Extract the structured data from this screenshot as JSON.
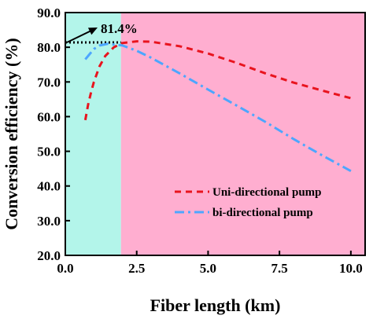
{
  "chart_data": {
    "type": "line",
    "xlabel": "Fiber length (km)",
    "ylabel": "Conversion efficiency (%)",
    "xlim": [
      0,
      10.5
    ],
    "ylim": [
      20,
      90
    ],
    "xticks": [
      0,
      2.5,
      5,
      7.5,
      10
    ],
    "xtick_labels": [
      "0.0",
      "2.5",
      "5.0",
      "7.5",
      "10.0"
    ],
    "yticks": [
      20,
      30,
      40,
      50,
      60,
      70,
      80,
      90
    ],
    "ytick_labels": [
      "20.0",
      "30.0",
      "40.0",
      "50.0",
      "60.0",
      "70.0",
      "80.0",
      "90.0"
    ],
    "grid": false,
    "legend_position": "lower-right",
    "background_regions": [
      {
        "from": 0,
        "to": 1.95,
        "color": "#b3f5ea"
      },
      {
        "from": 1.95,
        "to": 10.5,
        "color": "#ffaed0"
      }
    ],
    "reference_line": {
      "y": 81.4,
      "x_from": 0,
      "x_to": 1.95,
      "color": "#000000"
    },
    "annotation": {
      "text": "81.4%",
      "at_x": 0,
      "at_y": 81.4
    },
    "series": [
      {
        "name": "Uni-directional pump",
        "color": "#e8141e",
        "dash": "dashed",
        "points": [
          [
            0.7,
            59.0
          ],
          [
            0.8,
            63.5
          ],
          [
            0.9,
            67.0
          ],
          [
            1.0,
            70.0
          ],
          [
            1.2,
            74.5
          ],
          [
            1.4,
            77.5
          ],
          [
            1.7,
            80.0
          ],
          [
            2.0,
            81.2
          ],
          [
            2.5,
            81.7
          ],
          [
            3.0,
            81.6
          ],
          [
            4.0,
            80.3
          ],
          [
            5.0,
            78.2
          ],
          [
            6.0,
            75.5
          ],
          [
            7.0,
            72.5
          ],
          [
            8.0,
            69.8
          ],
          [
            9.0,
            67.5
          ],
          [
            10.0,
            65.3
          ]
        ]
      },
      {
        "name": "bi-directional pump",
        "color": "#4da6ff",
        "dash": "dashdot",
        "points": [
          [
            0.7,
            76.5
          ],
          [
            0.85,
            78.0
          ],
          [
            1.0,
            79.5
          ],
          [
            1.2,
            80.5
          ],
          [
            1.5,
            81.0
          ],
          [
            2.0,
            80.5
          ],
          [
            2.5,
            79.0
          ],
          [
            3.0,
            77.0
          ],
          [
            4.0,
            72.5
          ],
          [
            5.0,
            67.8
          ],
          [
            6.0,
            63.2
          ],
          [
            7.0,
            58.5
          ],
          [
            8.0,
            53.5
          ],
          [
            9.0,
            48.8
          ],
          [
            10.0,
            44.3
          ]
        ]
      }
    ]
  }
}
